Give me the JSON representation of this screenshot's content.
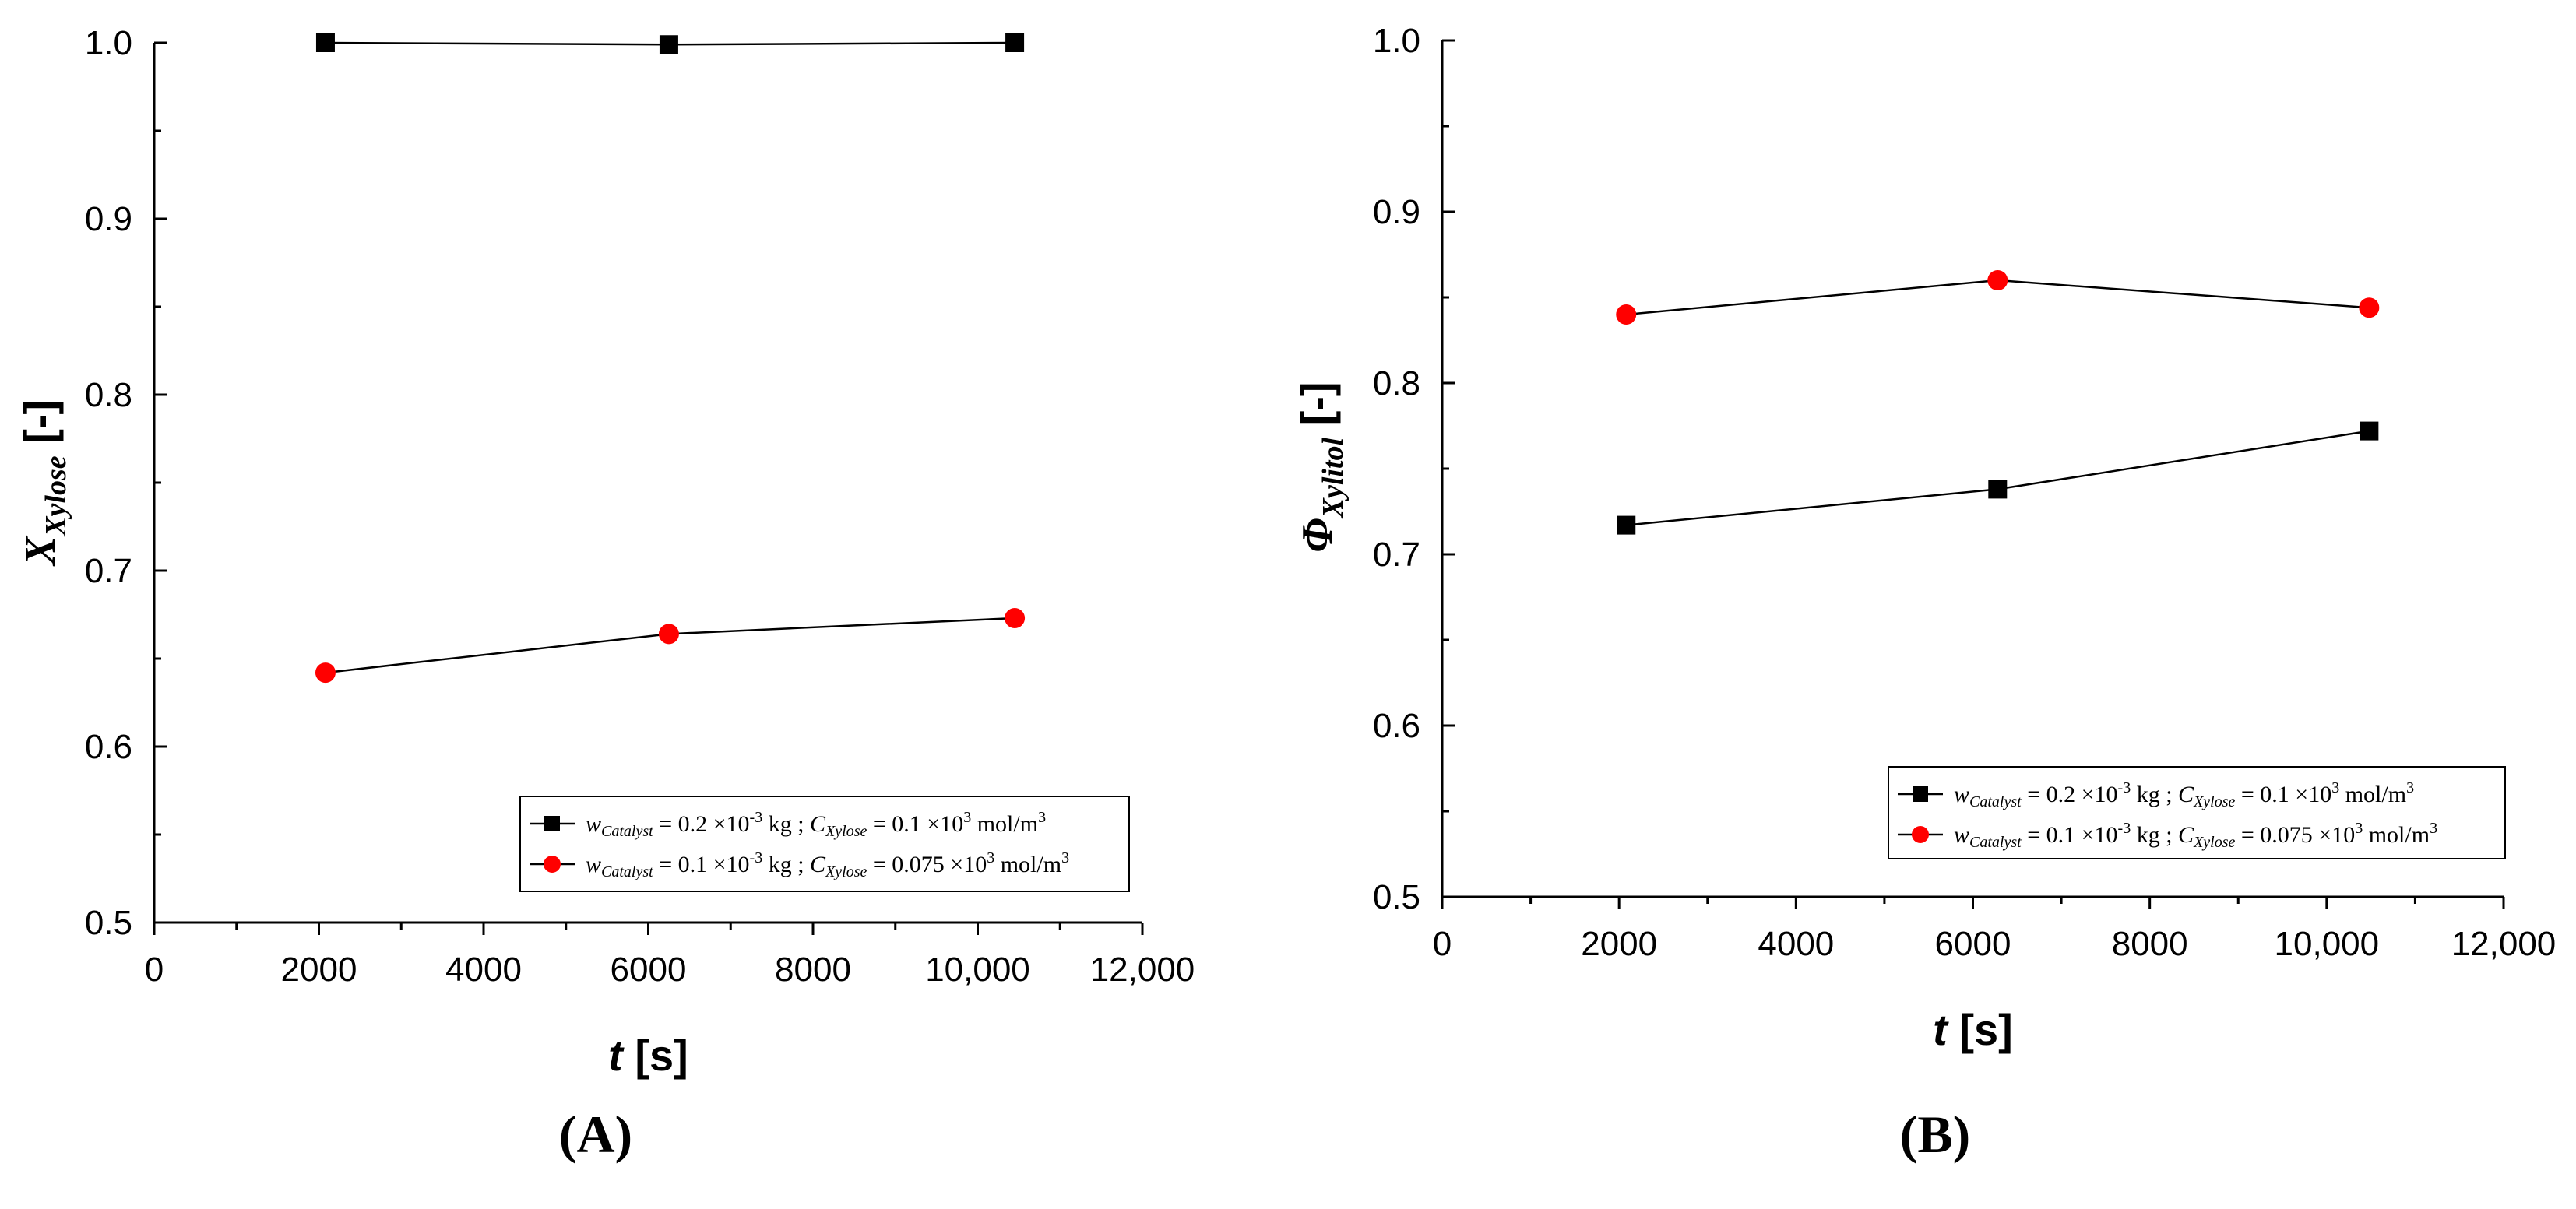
{
  "chart_data": [
    {
      "type": "line",
      "panel_label": "(A)",
      "xlabel": {
        "var": "t",
        "unit": "[s]"
      },
      "ylabel": {
        "base": "X",
        "sub": "Xylose",
        "unit": "[-]"
      },
      "xlim": [
        0,
        12000
      ],
      "ylim": [
        0.5,
        1.0
      ],
      "xticks": [
        0,
        2000,
        4000,
        6000,
        8000,
        10000,
        12000
      ],
      "xtick_labels": [
        "0",
        "2000",
        "4000",
        "6000",
        "8000",
        "10,000",
        "12,000"
      ],
      "yticks": [
        0.5,
        0.6,
        0.7,
        0.8,
        0.9,
        1.0
      ],
      "ytick_labels": [
        "0.5",
        "0.6",
        "0.7",
        "0.8",
        "0.9",
        "1.0"
      ],
      "legend_position": "bottom-right",
      "series": [
        {
          "marker": "square",
          "color": "#000000",
          "legend": {
            "w": "0.2",
            "w_exp": "-3",
            "w_unit": "kg",
            "c": "0.1",
            "c_exp": "3",
            "c_unit": "mol/m",
            "c_unit_exp": "3"
          },
          "x": [
            2080,
            6250,
            10450
          ],
          "y": [
            1.0,
            0.999,
            1.0
          ]
        },
        {
          "marker": "circle",
          "color": "#ff0000",
          "legend": {
            "w": "0.1",
            "w_exp": "-3",
            "w_unit": "kg",
            "c": "0.075",
            "c_exp": "3",
            "c_unit": "mol/m",
            "c_unit_exp": "3"
          },
          "x": [
            2080,
            6250,
            10450
          ],
          "y": [
            0.642,
            0.664,
            0.673
          ]
        }
      ]
    },
    {
      "type": "line",
      "panel_label": "(B)",
      "xlabel": {
        "var": "t",
        "unit": "[s]"
      },
      "ylabel": {
        "base": "Φ",
        "sub": "Xylitol",
        "unit": "[-]"
      },
      "xlim": [
        0,
        12000
      ],
      "ylim": [
        0.5,
        1.0
      ],
      "xticks": [
        0,
        2000,
        4000,
        6000,
        8000,
        10000,
        12000
      ],
      "xtick_labels": [
        "0",
        "2000",
        "4000",
        "6000",
        "8000",
        "10,000",
        "12,000"
      ],
      "yticks": [
        0.5,
        0.6,
        0.7,
        0.8,
        0.9,
        1.0
      ],
      "ytick_labels": [
        "0.5",
        "0.6",
        "0.7",
        "0.8",
        "0.9",
        "1.0"
      ],
      "legend_position": "bottom-right",
      "series": [
        {
          "marker": "square",
          "color": "#000000",
          "legend": {
            "w": "0.2",
            "w_exp": "-3",
            "w_unit": "kg",
            "c": "0.1",
            "c_exp": "3",
            "c_unit": "mol/m",
            "c_unit_exp": "3"
          },
          "x": [
            2080,
            6280,
            10480
          ],
          "y": [
            0.717,
            0.738,
            0.772
          ]
        },
        {
          "marker": "circle",
          "color": "#ff0000",
          "legend": {
            "w": "0.1",
            "w_exp": "-3",
            "w_unit": "kg",
            "c": "0.075",
            "c_exp": "3",
            "c_unit": "mol/m",
            "c_unit_exp": "3"
          },
          "x": [
            2080,
            6280,
            10480
          ],
          "y": [
            0.84,
            0.86,
            0.844
          ]
        }
      ]
    }
  ],
  "legend_labels": {
    "w_sym": "w",
    "w_sub": "Catalyst",
    "c_sym": "C",
    "c_sub": "Xylose",
    "eq": "=",
    "times": "×10",
    "sep": ";"
  }
}
